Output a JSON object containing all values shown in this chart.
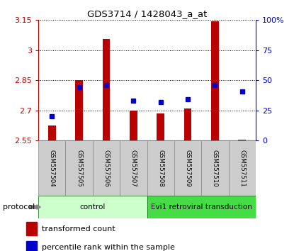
{
  "title": "GDS3714 / 1428043_a_at",
  "samples": [
    "GSM557504",
    "GSM557505",
    "GSM557506",
    "GSM557507",
    "GSM557508",
    "GSM557509",
    "GSM557510",
    "GSM557511"
  ],
  "red_values": [
    2.625,
    2.852,
    3.055,
    2.7,
    2.684,
    2.71,
    3.145,
    2.555
  ],
  "blue_values_pct": [
    20,
    44,
    46,
    33,
    32,
    34,
    46,
    41
  ],
  "ylim_left": [
    2.55,
    3.15
  ],
  "ylim_right": [
    0,
    100
  ],
  "yticks_left": [
    2.55,
    2.7,
    2.85,
    3.0,
    3.15
  ],
  "yticks_right": [
    0,
    25,
    50,
    75,
    100
  ],
  "ytick_labels_left": [
    "2.55",
    "2.7",
    "2.85",
    "3",
    "3.15"
  ],
  "ytick_labels_right": [
    "0",
    "25",
    "50",
    "75",
    "100%"
  ],
  "groups": [
    {
      "label": "control",
      "start": 0,
      "end": 4,
      "color": "#ccffcc"
    },
    {
      "label": "Evi1 retroviral transduction",
      "start": 4,
      "end": 8,
      "color": "#44dd44"
    }
  ],
  "protocol_label": "protocol",
  "red_color": "#bb0000",
  "blue_color": "#0000cc",
  "bar_bottom": 2.55,
  "legend_red": "transformed count",
  "legend_blue": "percentile rank within the sample"
}
